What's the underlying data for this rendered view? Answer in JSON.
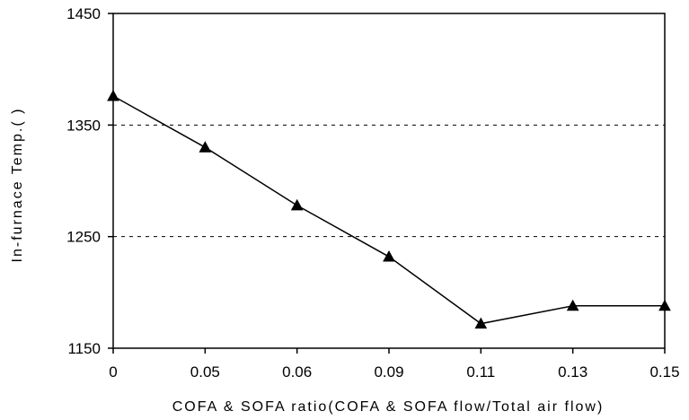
{
  "chart_data": {
    "type": "line",
    "categories": [
      "0",
      "0.05",
      "0.06",
      "0.09",
      "0.11",
      "0.13",
      "0.15"
    ],
    "series": [
      {
        "name": "",
        "values": [
          1376,
          1330,
          1278,
          1232,
          1172,
          1188,
          1188
        ],
        "color": "#000000",
        "marker": "triangle"
      }
    ],
    "xlabel": "COFA & SOFA ratio(COFA & SOFA flow/Total air flow)",
    "ylabel": "In-furnace Temp.(   )",
    "ylim": [
      1150,
      1450
    ],
    "yticks": [
      1150,
      1250,
      1350,
      1450
    ],
    "grid": "horizontal-dashed"
  }
}
